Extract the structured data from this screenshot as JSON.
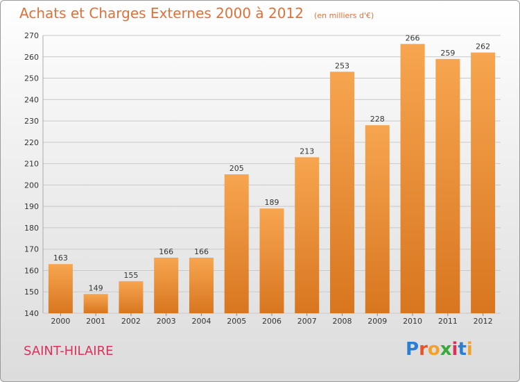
{
  "title": "Achats et Charges Externes 2000 à 2012",
  "unit_note": "(en milliers d'€)",
  "city": "SAINT-HILAIRE",
  "logo": {
    "text": "Proxiti",
    "letter_colors": [
      "#2a7fd4",
      "#e8542a",
      "#f2a12a",
      "#3aa83a",
      "#d8325a",
      "#2a7fd4",
      "#f2a12a"
    ]
  },
  "colors": {
    "bar_light": "#f7a550",
    "bar_dark": "#d8761f",
    "title": "#e0703a",
    "city": "#d8325a"
  },
  "chart_data": {
    "type": "bar",
    "categories": [
      "2000",
      "2001",
      "2002",
      "2003",
      "2004",
      "2005",
      "2006",
      "2007",
      "2008",
      "2009",
      "2010",
      "2011",
      "2012"
    ],
    "values": [
      163,
      149,
      155,
      166,
      166,
      205,
      189,
      213,
      253,
      228,
      266,
      259,
      262
    ],
    "ylim": [
      140,
      270
    ],
    "yticks": [
      140,
      150,
      160,
      170,
      180,
      190,
      200,
      210,
      220,
      230,
      240,
      250,
      260,
      270
    ],
    "grid": true,
    "xlabel": "",
    "ylabel": ""
  }
}
